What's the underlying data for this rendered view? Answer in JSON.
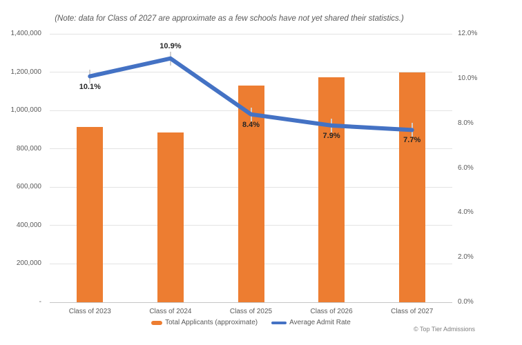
{
  "note": "(Note: data for Class of 2027 are approximate as a few schools have not yet shared their statistics.)",
  "chart_data": {
    "type": "bar+line combo",
    "title": "(Note: data for Class of 2027 are approximate as a few schools have not yet shared their statistics.)",
    "categories": [
      "Class of 2023",
      "Class of 2024",
      "Class of 2025",
      "Class of 2026",
      "Class of 2027"
    ],
    "series": [
      {
        "name": "Total Applicants (approximate)",
        "type": "bar",
        "axis": "left",
        "color": "#ED7D31",
        "values": [
          915000,
          885000,
          1130000,
          1175000,
          1200000
        ]
      },
      {
        "name": "Average Admit Rate",
        "type": "line",
        "axis": "right",
        "color": "#4472C4",
        "values": [
          10.1,
          10.9,
          8.4,
          7.9,
          7.7
        ],
        "point_labels": [
          "10.1%",
          "10.9%",
          "8.4%",
          "7.9%",
          "7.7%"
        ],
        "label_placement": [
          "below",
          "above",
          "below",
          "below",
          "below"
        ]
      }
    ],
    "left_axis": {
      "min": 0,
      "max": 1400000,
      "ticks": [
        "1,400,000",
        "1,200,000",
        "1,000,000",
        "800,000",
        "600,000",
        "400,000",
        "200,000",
        "-"
      ]
    },
    "right_axis": {
      "min": 0,
      "max": 12,
      "ticks": [
        "12.0%",
        "10.0%",
        "8.0%",
        "6.0%",
        "4.0%",
        "2.0%",
        "0.0%"
      ]
    },
    "legend_position": "bottom-center",
    "grid": true,
    "gridline_color": "#e3e3e3",
    "marker_tick_color": "#d0cece",
    "point_label_color": "#262626",
    "axis_text_color": "#595959"
  },
  "footer": {
    "copyright": "© Top Tier Admissions"
  }
}
